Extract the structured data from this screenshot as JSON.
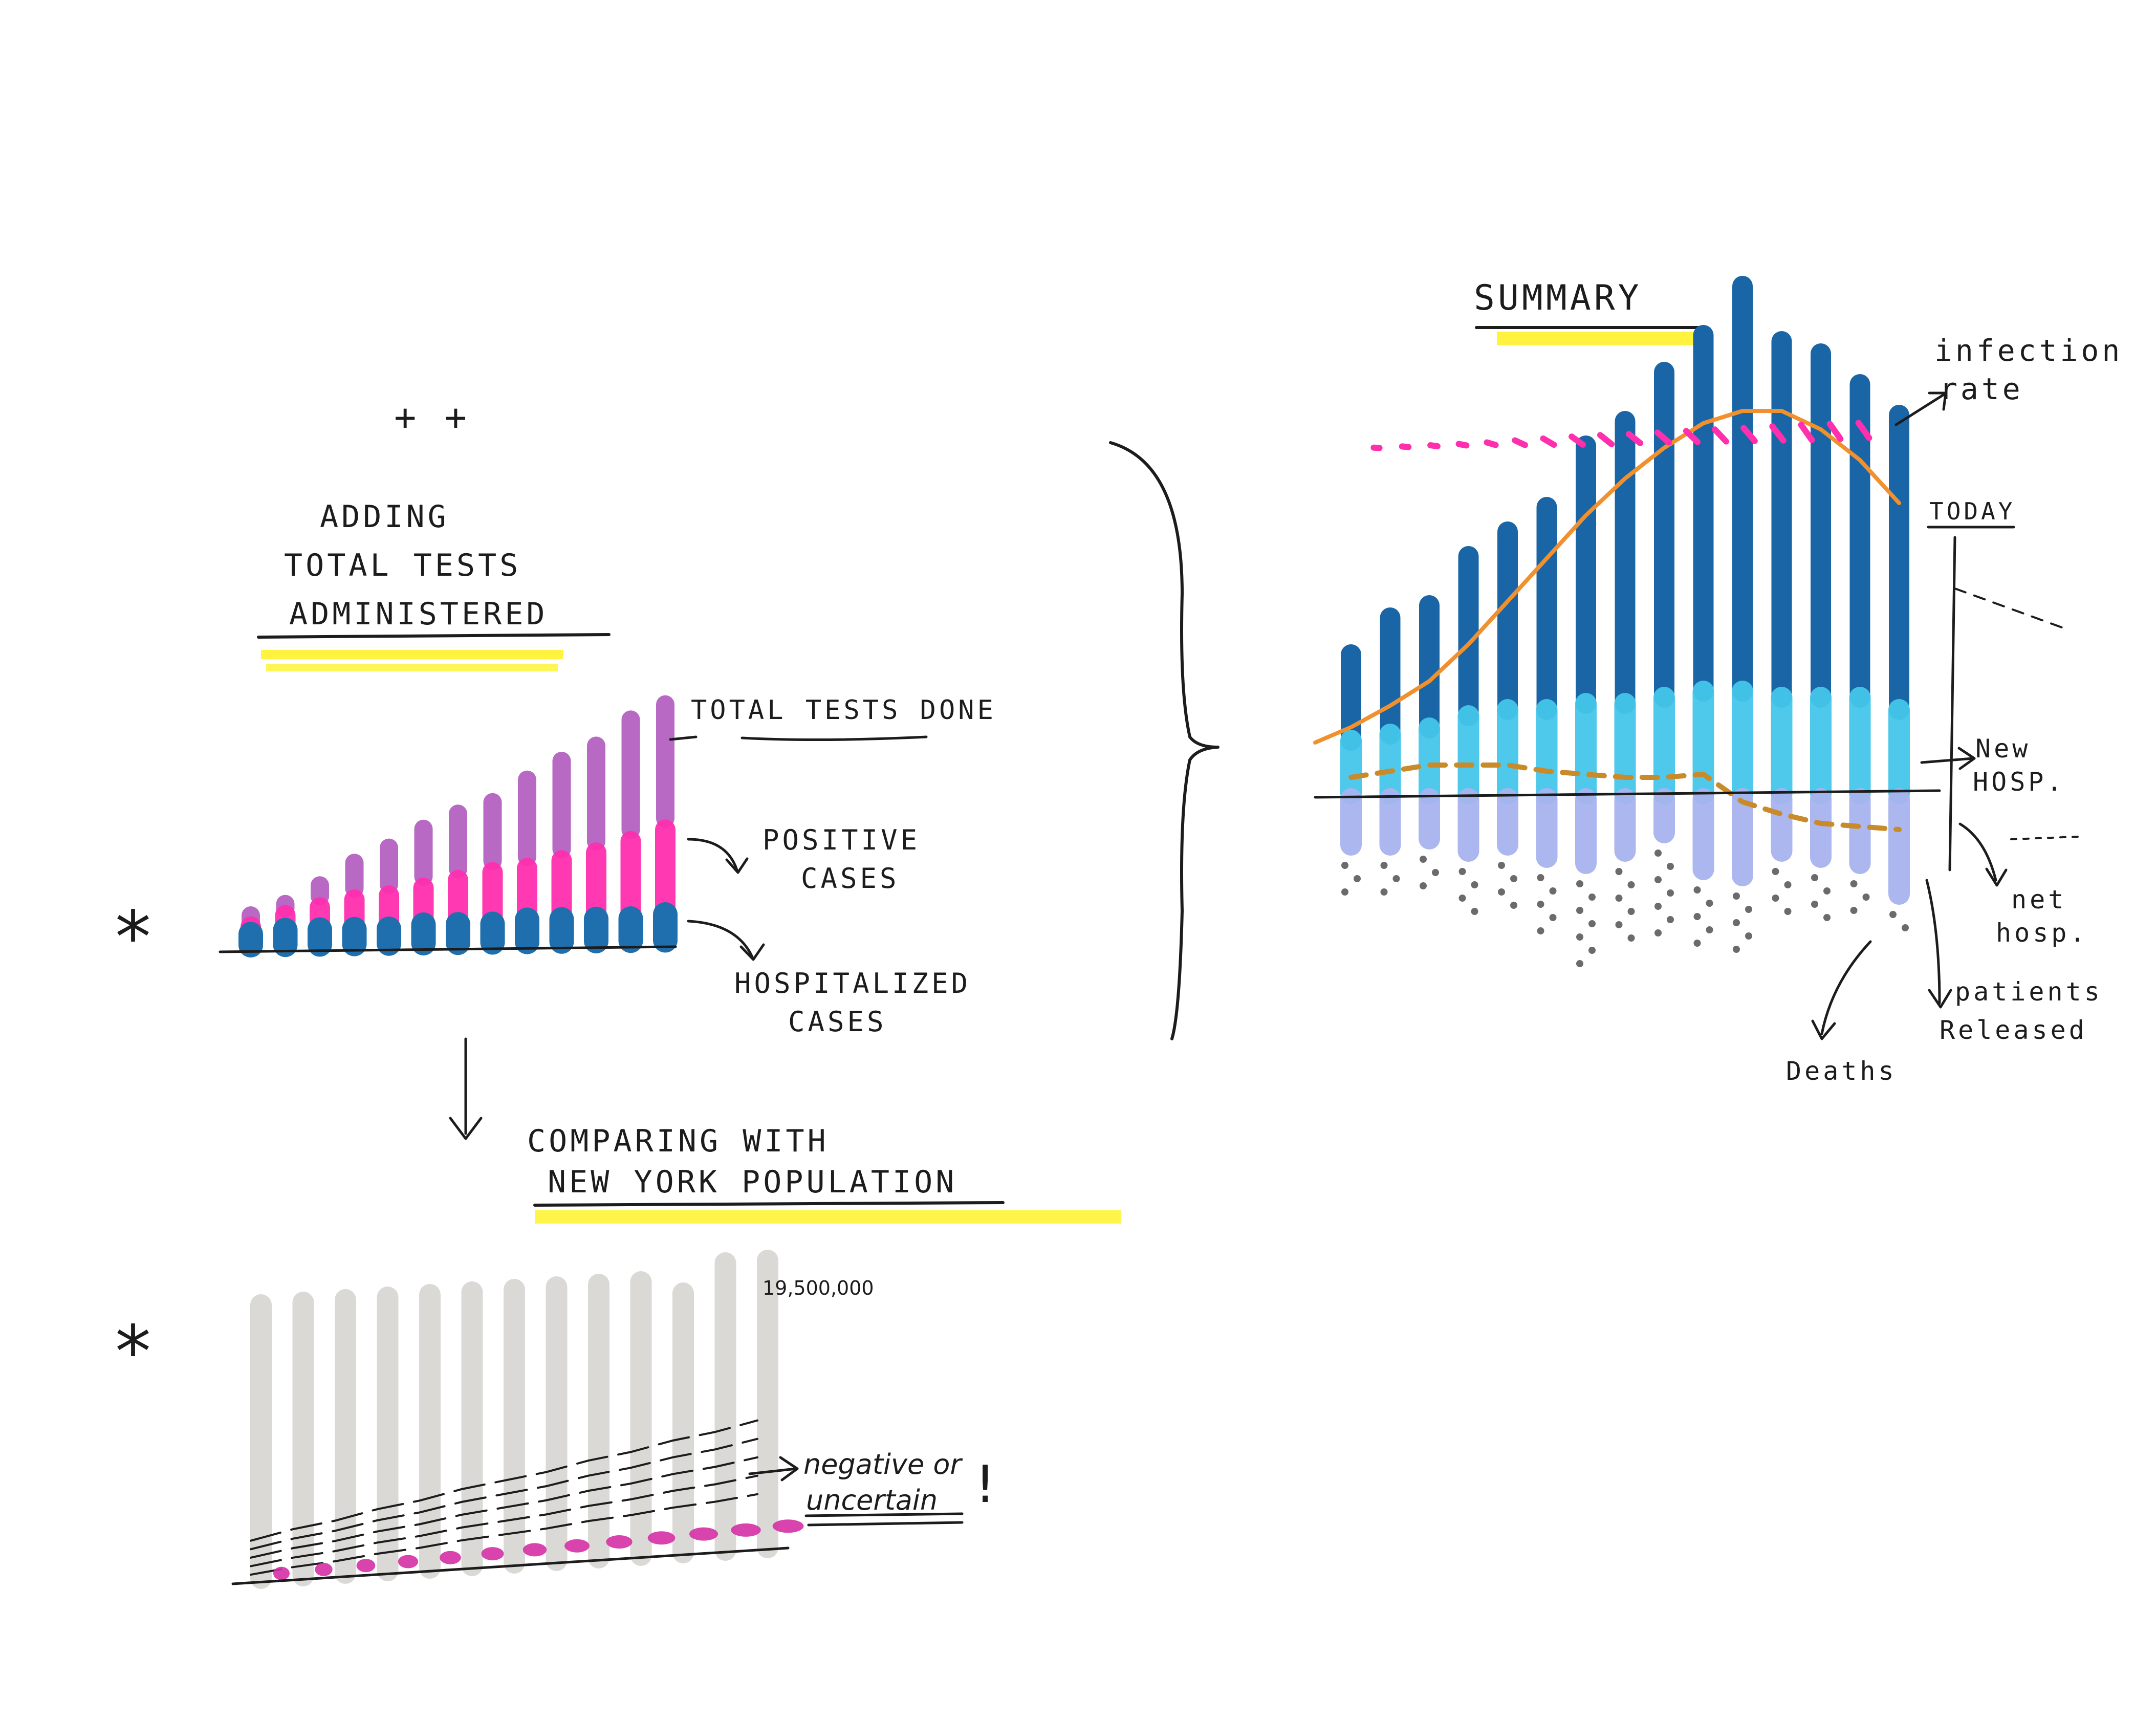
{
  "colors": {
    "ink": "#1c1c1c",
    "highlight": "#fff22a",
    "total_tests": "#b461c0",
    "positive": "#ff2fae",
    "hospitalized": "#1f6fae",
    "dark_blue": "#1a65a6",
    "light_cyan": "#45c6ea",
    "lavender": "#a8b4ef",
    "orange": "#f0902e",
    "dots": "#6b6b6b",
    "population": "#d9d7d4",
    "magenta": "#d52fa4"
  },
  "decor": {
    "plus_marks": "+ +",
    "asterisk_top": "*",
    "asterisk_bottom": "*",
    "exclamation": "!"
  },
  "section_tests": {
    "title_line1": "ADDING",
    "title_line2": "TOTAL TESTS",
    "title_line3": "ADMINISTERED",
    "label_total": "TOTAL TESTS DONE",
    "label_positive_1": "POSITIVE",
    "label_positive_2": "CASES",
    "label_hosp_1": "HOSPITALIZED",
    "label_hosp_2": "CASES"
  },
  "section_population": {
    "title_line1": "COMPARING WITH",
    "title_line2": "NEW YORK POPULATION",
    "population_label": "19,500,000",
    "note_line1": "negative or",
    "note_line2": "uncertain"
  },
  "section_summary": {
    "title": "SUMMARY",
    "label_infection_1": "infection",
    "label_infection_2": "rate",
    "label_today": "TODAY",
    "label_new_hosp_1": "New",
    "label_new_hosp_2": "HOSP.",
    "label_net_hosp_1": "net",
    "label_net_hosp_2": "hosp.",
    "label_released_1": "patients",
    "label_released_2": "Released",
    "label_deaths": "Deaths"
  },
  "chart_data": [
    {
      "type": "bar",
      "series": [
        {
          "name": "TOTAL TESTS DONE",
          "values": [
            0.5,
            1.0,
            1.6,
            2.2,
            2.6,
            3.1,
            3.5,
            3.8,
            4.4,
            4.9,
            5.3,
            6.0,
            6.4
          ]
        },
        {
          "name": "POSITIVE CASES",
          "values": [
            0.5,
            0.8,
            1.0,
            1.2,
            1.3,
            1.5,
            1.7,
            1.9,
            2.0,
            2.2,
            2.4,
            2.7,
            3.0
          ]
        },
        {
          "name": "HOSPITALIZED CASES",
          "values": [
            0.3,
            0.4,
            0.4,
            0.4,
            0.4,
            0.5,
            0.5,
            0.5,
            0.6,
            0.6,
            0.6,
            0.6,
            0.7
          ]
        }
      ]
    },
    {
      "type": "bar",
      "population_label": "19,500,000",
      "population_bars": [
        1.0,
        1.0,
        1.0,
        1.0,
        1.0,
        1.0,
        1.0,
        1.0,
        1.0,
        1.0,
        0.95,
        1.05,
        1.05
      ],
      "tested_share": [
        0.04,
        0.07,
        0.09,
        0.12,
        0.14,
        0.17,
        0.19,
        0.21,
        0.24,
        0.26,
        0.29,
        0.31,
        0.34
      ],
      "positive_share": [
        0.01,
        0.015,
        0.02,
        0.025,
        0.03,
        0.035,
        0.04,
        0.045,
        0.05,
        0.055,
        0.06,
        0.065,
        0.07
      ],
      "note": "negative or uncertain"
    },
    {
      "type": "bar",
      "infection_rate": [
        0.05,
        0.1,
        0.15,
        0.2,
        0.3,
        0.45,
        0.55,
        0.65,
        0.7,
        0.7,
        0.75,
        0.8,
        0.85,
        0.9,
        0.95,
        1.0,
        1.0,
        1.0
      ],
      "series": [
        {
          "name": "",
          "values": [
            1.4,
            1.9,
            2.0,
            2.6,
            2.9,
            3.3,
            4.2,
            4.6,
            5.3,
            5.8,
            6.6,
            5.8,
            5.6,
            5.1,
            4.8
          ]
        },
        {
          "name": "New HOSP.",
          "values": [
            0.9,
            1.0,
            1.1,
            1.3,
            1.4,
            1.4,
            1.5,
            1.5,
            1.6,
            1.7,
            1.7,
            1.6,
            1.6,
            1.6,
            1.4
          ]
        },
        {
          "name": "patients Released",
          "values": [
            0.8,
            0.8,
            0.7,
            0.9,
            0.8,
            1.0,
            1.1,
            0.9,
            0.6,
            1.2,
            1.3,
            0.9,
            1.0,
            1.1,
            1.6
          ]
        },
        {
          "name": "Deaths",
          "values": [
            0.5,
            0.6,
            0.5,
            0.7,
            0.8,
            1.0,
            1.3,
            1.1,
            1.3,
            0.9,
            0.9,
            0.7,
            0.7,
            0.6,
            0.4
          ]
        }
      ],
      "trend_values": [
        0.95,
        1.3,
        1.7,
        2.3,
        3.0,
        3.7,
        4.4,
        5.0,
        5.5,
        5.9,
        6.1,
        6.1,
        5.8,
        5.3,
        4.6
      ],
      "net_hosp": [
        0.3,
        0.4,
        0.5,
        0.5,
        0.5,
        0.4,
        0.35,
        0.3,
        0.3,
        0.35,
        -0.1,
        -0.3,
        -0.45,
        -0.5,
        -0.55
      ]
    }
  ]
}
